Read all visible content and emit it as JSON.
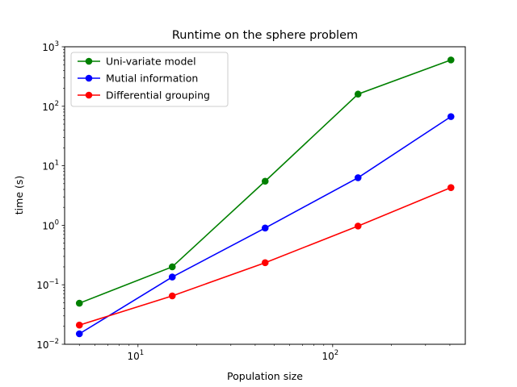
{
  "chart_data": {
    "type": "line",
    "title": "Runtime on the sphere problem",
    "xlabel": "Population size",
    "ylabel": "time (s)",
    "xscale": "log",
    "yscale": "log",
    "xlim": [
      4.2,
      480
    ],
    "ylim": [
      0.01,
      1000
    ],
    "grid": false,
    "legend": "top-left",
    "x": [
      5,
      15,
      45,
      135,
      405
    ],
    "x_ticks": [
      {
        "base": "10",
        "exp": "1",
        "value": 10
      },
      {
        "base": "10",
        "exp": "2",
        "value": 100
      }
    ],
    "y_ticks": [
      {
        "base": "10",
        "exp": "−2",
        "value": 0.01
      },
      {
        "base": "10",
        "exp": "−1",
        "value": 0.1
      },
      {
        "base": "10",
        "exp": "0",
        "value": 1
      },
      {
        "base": "10",
        "exp": "1",
        "value": 10
      },
      {
        "base": "10",
        "exp": "2",
        "value": 100
      },
      {
        "base": "10",
        "exp": "3",
        "value": 1000
      }
    ],
    "series": [
      {
        "name": "Uni-variate model",
        "color": "#008000",
        "values": [
          0.049,
          0.2,
          5.5,
          160,
          600
        ]
      },
      {
        "name": "Mutial information",
        "color": "#0000ff",
        "values": [
          0.015,
          0.135,
          0.9,
          6.3,
          67
        ]
      },
      {
        "name": "Differential grouping",
        "color": "#ff0000",
        "values": [
          0.021,
          0.065,
          0.235,
          0.97,
          4.3
        ]
      }
    ]
  }
}
